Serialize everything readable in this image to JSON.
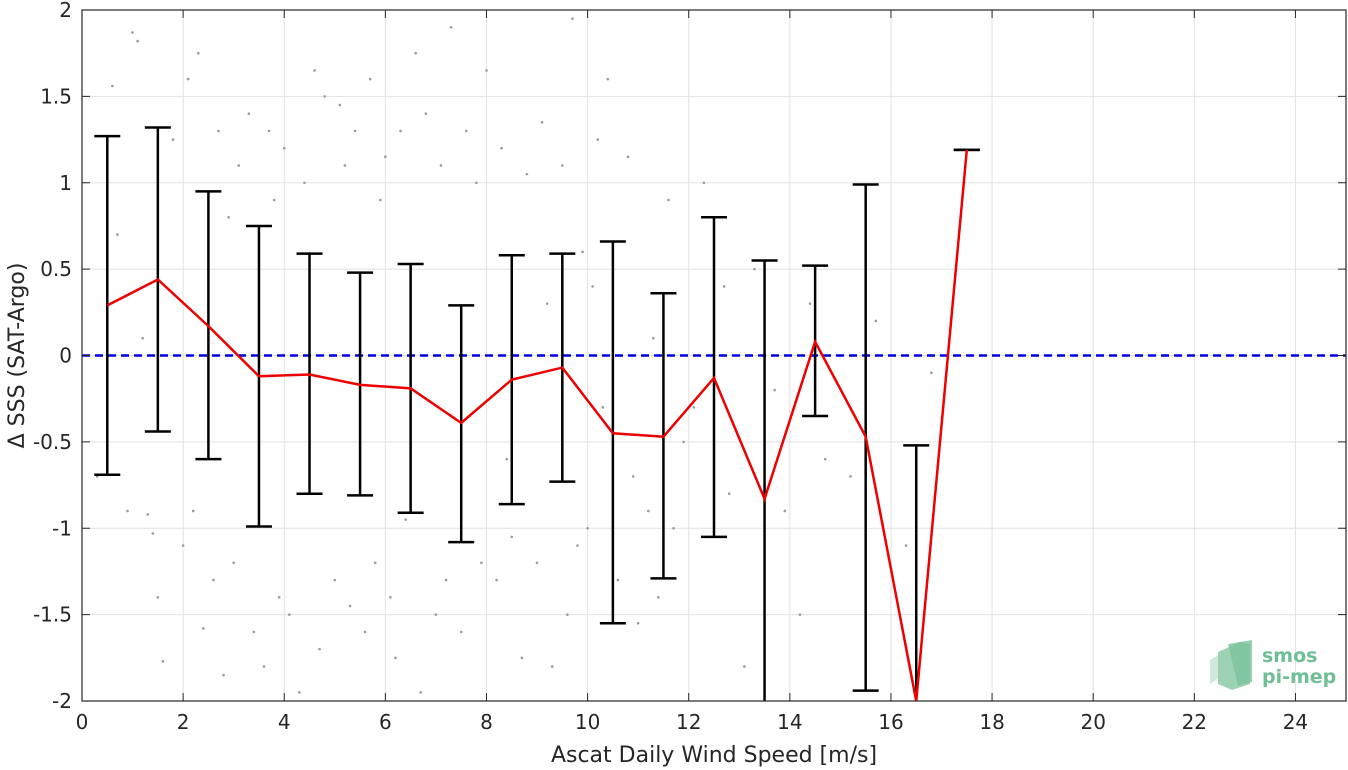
{
  "chart_data": {
    "type": "scatter",
    "title": "",
    "xlabel": "Ascat Daily Wind Speed [m/s]",
    "ylabel": "Δ SSS (SAT-Argo)",
    "xlim": [
      0,
      25
    ],
    "ylim": [
      -2,
      2
    ],
    "x_ticks": [
      0,
      2,
      4,
      6,
      8,
      10,
      12,
      14,
      16,
      18,
      20,
      22,
      24
    ],
    "x_tick_labels": [
      "0",
      "2",
      "4",
      "6",
      "8",
      "10",
      "12",
      "14",
      "16",
      "18",
      "20",
      "22",
      "24"
    ],
    "y_ticks": [
      -2,
      -1.5,
      -1,
      -0.5,
      0,
      0.5,
      1,
      1.5,
      2
    ],
    "y_tick_labels": [
      "-2",
      "-1.5",
      "-1",
      "-0.5",
      "0",
      "0.5",
      "1",
      "1.5",
      "2"
    ],
    "grid": true,
    "reference_line": {
      "y": 0,
      "color": "#0000dd",
      "style": "dashed"
    },
    "series": [
      {
        "kind": "mean-with-error-bars",
        "color": "#ee0000",
        "errorbar_color": "#000000",
        "x": [
          0.5,
          1.5,
          2.5,
          3.5,
          4.5,
          5.5,
          6.5,
          7.5,
          8.5,
          9.5,
          10.5,
          11.5,
          12.5,
          13.5,
          14.5,
          15.5,
          16.5,
          17.5
        ],
        "y": [
          0.29,
          0.44,
          0.17,
          -0.12,
          -0.11,
          -0.17,
          -0.19,
          -0.39,
          -0.14,
          -0.07,
          -0.45,
          -0.47,
          -0.13,
          -0.83,
          0.08,
          -0.47,
          -2.05,
          1.19
        ],
        "ylow": [
          -0.69,
          -0.44,
          -0.6,
          -0.99,
          -0.8,
          -0.81,
          -0.91,
          -1.08,
          -0.86,
          -0.73,
          -1.55,
          -1.29,
          -1.05,
          -2.2,
          -0.35,
          -1.94,
          -2.2,
          1.19
        ],
        "yhigh": [
          1.27,
          1.32,
          0.95,
          0.75,
          0.59,
          0.48,
          0.53,
          0.29,
          0.58,
          0.59,
          0.66,
          0.36,
          0.8,
          0.55,
          0.52,
          0.99,
          -0.52,
          1.19
        ]
      }
    ],
    "scatter_points": [
      {
        "x": 0.6,
        "y": 1.56
      },
      {
        "x": 1.0,
        "y": 1.87
      },
      {
        "x": 1.1,
        "y": 1.82
      },
      {
        "x": 0.9,
        "y": -0.9
      },
      {
        "x": 0.3,
        "y": -0.7
      },
      {
        "x": 1.3,
        "y": -0.92
      },
      {
        "x": 1.4,
        "y": -1.03
      },
      {
        "x": 1.5,
        "y": -1.4
      },
      {
        "x": 1.6,
        "y": -1.77
      },
      {
        "x": 0.7,
        "y": 0.7
      },
      {
        "x": 1.2,
        "y": 0.1
      },
      {
        "x": 1.8,
        "y": 1.25
      },
      {
        "x": 2.0,
        "y": -1.1
      },
      {
        "x": 2.2,
        "y": -0.9
      },
      {
        "x": 2.4,
        "y": -1.58
      },
      {
        "x": 2.6,
        "y": -1.3
      },
      {
        "x": 2.8,
        "y": -1.85
      },
      {
        "x": 2.3,
        "y": 1.75
      },
      {
        "x": 2.7,
        "y": 1.3
      },
      {
        "x": 2.9,
        "y": 0.8
      },
      {
        "x": 3.0,
        "y": -1.2
      },
      {
        "x": 3.1,
        "y": 1.1
      },
      {
        "x": 3.3,
        "y": 1.4
      },
      {
        "x": 3.4,
        "y": -1.6
      },
      {
        "x": 3.6,
        "y": -1.8
      },
      {
        "x": 3.7,
        "y": 1.3
      },
      {
        "x": 3.8,
        "y": 0.9
      },
      {
        "x": 3.9,
        "y": -1.4
      },
      {
        "x": 2.1,
        "y": 1.6
      },
      {
        "x": 2.5,
        "y": 0.5
      },
      {
        "x": 4.0,
        "y": 1.2
      },
      {
        "x": 4.1,
        "y": -1.5
      },
      {
        "x": 4.3,
        "y": -1.95
      },
      {
        "x": 4.4,
        "y": 1.0
      },
      {
        "x": 4.6,
        "y": 1.65
      },
      {
        "x": 4.7,
        "y": -1.7
      },
      {
        "x": 4.8,
        "y": 1.5
      },
      {
        "x": 5.0,
        "y": -1.3
      },
      {
        "x": 5.1,
        "y": 1.45
      },
      {
        "x": 5.2,
        "y": 1.1
      },
      {
        "x": 5.3,
        "y": -1.45
      },
      {
        "x": 5.4,
        "y": 1.3
      },
      {
        "x": 5.6,
        "y": -1.6
      },
      {
        "x": 5.7,
        "y": 1.6
      },
      {
        "x": 5.8,
        "y": -1.2
      },
      {
        "x": 5.9,
        "y": 0.9
      },
      {
        "x": 6.0,
        "y": 1.15
      },
      {
        "x": 6.1,
        "y": -1.4
      },
      {
        "x": 6.2,
        "y": -1.75
      },
      {
        "x": 6.3,
        "y": 1.3
      },
      {
        "x": 6.4,
        "y": -0.95
      },
      {
        "x": 6.6,
        "y": 1.75
      },
      {
        "x": 6.7,
        "y": -1.95
      },
      {
        "x": 6.8,
        "y": 1.4
      },
      {
        "x": 7.0,
        "y": -1.5
      },
      {
        "x": 7.1,
        "y": 1.1
      },
      {
        "x": 7.2,
        "y": -1.3
      },
      {
        "x": 7.3,
        "y": 1.9
      },
      {
        "x": 7.5,
        "y": -1.6
      },
      {
        "x": 7.6,
        "y": 1.3
      },
      {
        "x": 7.8,
        "y": 1.0
      },
      {
        "x": 7.9,
        "y": -1.2
      },
      {
        "x": 8.0,
        "y": 1.65
      },
      {
        "x": 8.2,
        "y": -1.3
      },
      {
        "x": 8.3,
        "y": 1.2
      },
      {
        "x": 8.5,
        "y": -1.05
      },
      {
        "x": 8.7,
        "y": -1.75
      },
      {
        "x": 8.8,
        "y": 1.05
      },
      {
        "x": 9.0,
        "y": -1.2
      },
      {
        "x": 9.1,
        "y": 1.35
      },
      {
        "x": 9.3,
        "y": -1.8
      },
      {
        "x": 9.5,
        "y": 1.1
      },
      {
        "x": 9.6,
        "y": -1.5
      },
      {
        "x": 9.7,
        "y": 1.95
      },
      {
        "x": 9.8,
        "y": -1.1
      },
      {
        "x": 10.0,
        "y": -1.0
      },
      {
        "x": 10.2,
        "y": 1.25
      },
      {
        "x": 10.4,
        "y": 1.6
      },
      {
        "x": 10.6,
        "y": -1.3
      },
      {
        "x": 10.8,
        "y": 1.15
      },
      {
        "x": 11.0,
        "y": -1.55
      },
      {
        "x": 11.2,
        "y": -0.9
      },
      {
        "x": 11.4,
        "y": -1.4
      },
      {
        "x": 11.6,
        "y": 0.9
      },
      {
        "x": 11.9,
        "y": -0.5
      },
      {
        "x": 12.3,
        "y": 1.0
      },
      {
        "x": 12.7,
        "y": 0.4
      },
      {
        "x": 13.1,
        "y": -1.8
      },
      {
        "x": 13.3,
        "y": 0.5
      },
      {
        "x": 13.9,
        "y": -0.9
      },
      {
        "x": 14.2,
        "y": -1.5
      },
      {
        "x": 14.7,
        "y": -0.6
      },
      {
        "x": 16.8,
        "y": -0.1
      },
      {
        "x": 15.7,
        "y": 0.2
      },
      {
        "x": 8.4,
        "y": -0.6
      },
      {
        "x": 9.2,
        "y": 0.3
      },
      {
        "x": 10.1,
        "y": 0.4
      },
      {
        "x": 10.9,
        "y": -0.7
      },
      {
        "x": 11.3,
        "y": 0.1
      },
      {
        "x": 12.1,
        "y": -0.3
      },
      {
        "x": 13.7,
        "y": -0.2
      },
      {
        "x": 14.4,
        "y": 0.3
      },
      {
        "x": 15.2,
        "y": -0.7
      },
      {
        "x": 16.3,
        "y": -1.1
      },
      {
        "x": 12.8,
        "y": -0.8
      },
      {
        "x": 11.7,
        "y": -1.0
      },
      {
        "x": 10.3,
        "y": -0.3
      },
      {
        "x": 9.9,
        "y": 0.6
      }
    ],
    "logo": {
      "line1": "smos",
      "line2": "pi-mep"
    }
  }
}
